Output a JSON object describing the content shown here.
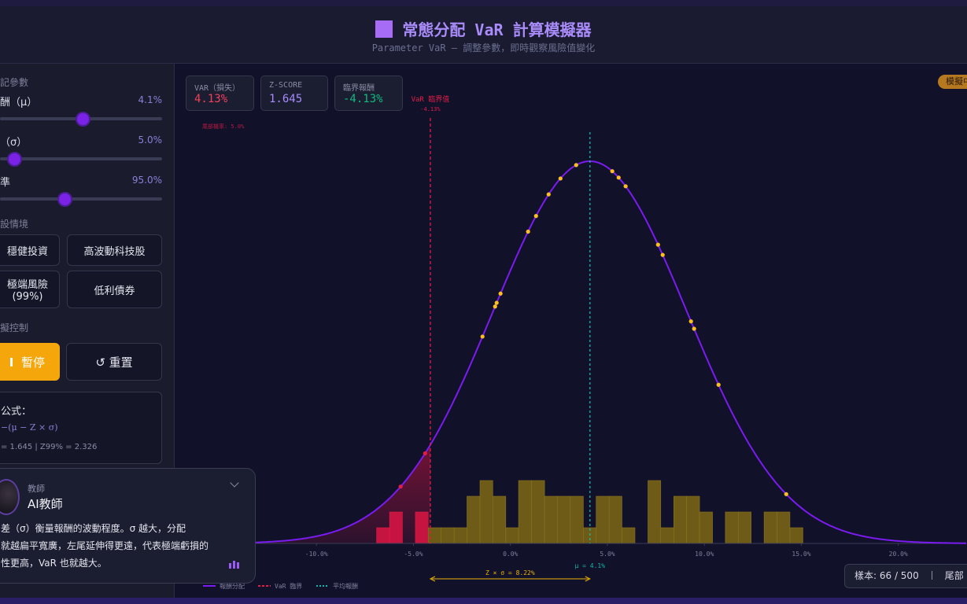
{
  "header": {
    "title": "常態分配 VaR 計算模擬器",
    "subtitle": "Parameter VaR — 調整參數，即時觀察風險值變化"
  },
  "sidebar": {
    "params_heading": "記參數",
    "sliders": [
      {
        "label": "酬（μ）",
        "value": "4.1%"
      },
      {
        "label": "（σ）",
        "value": "5.0%"
      },
      {
        "label": "準",
        "value": "95.0%"
      }
    ],
    "scenario_heading": "設情境",
    "scenarios": [
      "穩健投資",
      "高波動科技股",
      "極端風險 (99%)",
      "低利債券"
    ],
    "control_heading": "擬控制",
    "pause": "暫停",
    "reset": "↺ 重置",
    "formula_title": "公式：",
    "formula_lines": [
      "−(μ − Z × σ)",
      "= 1.645 | Z99% = 2.326"
    ]
  },
  "chat": {
    "role": "教師",
    "name": "AI教師",
    "lines": [
      "差（σ）衡量報酬的波動程度。σ 越大，分配",
      "就越扁平寬廣，左尾延伸得更遠，代表極端虧損的",
      "性更高，VaR 也就越大。"
    ]
  },
  "stats": [
    {
      "label": "VAR（損失）",
      "value": "4.13%"
    },
    {
      "label": "Z-SCORE",
      "value": "1.645"
    },
    {
      "label": "臨界報酬",
      "value": "-4.13%"
    }
  ],
  "status_badge": "模擬中",
  "footer_stats": {
    "samples": "樣本: 66 / 500",
    "tail": "尾部"
  },
  "chart_data": {
    "type": "histogram",
    "bins": [
      -6.9,
      -6.23,
      -5.57,
      -4.9,
      -4.24,
      -3.57,
      -2.9,
      -2.24,
      -1.57,
      -0.91,
      -0.24,
      0.42,
      1.09,
      1.76,
      2.42,
      3.09,
      3.76,
      4.42,
      5.09,
      5.75,
      6.42,
      7.09,
      7.75,
      8.42,
      9.08,
      9.75,
      10.42,
      11.08,
      11.75,
      12.41,
      13.08,
      13.75,
      14.41,
      15.08
    ],
    "values": [
      1,
      2,
      0,
      2,
      1,
      1,
      1,
      3,
      4,
      3,
      1,
      4,
      4,
      3,
      3,
      3,
      1,
      3,
      3,
      1,
      0,
      4,
      1,
      3,
      3,
      2,
      0,
      2,
      2,
      0,
      2,
      2,
      1
    ],
    "mean": 4.1,
    "sigma": 5.0,
    "var_threshold": -4.13,
    "sample_points": [
      -5.66,
      -4.4,
      -1.44,
      -0.79,
      -0.71,
      -0.51,
      0.91,
      1.32,
      1.97,
      2.58,
      3.39,
      5.25,
      5.58,
      5.94,
      7.61,
      7.85,
      9.31,
      9.47,
      10.73,
      14.22
    ],
    "xlim": [
      -16.5,
      23.5
    ],
    "ylim": [
      0,
      20
    ],
    "xticks": [
      {
        "value": -10,
        "label": "-10.0%"
      },
      {
        "value": -5,
        "label": "-5.0%"
      },
      {
        "value": 0,
        "label": "0.0%"
      },
      {
        "value": 5,
        "label": "5.0%"
      },
      {
        "value": 10,
        "label": "10.0%"
      },
      {
        "value": 15,
        "label": "15.0%"
      },
      {
        "value": 20,
        "label": "20.0%"
      }
    ],
    "var_label": "VaR 臨界值",
    "var_value_label": "-4.13%",
    "tail_label": "尾部機率: 5.0%",
    "mean_label": "μ = 4.1%",
    "span_label": "Z × σ = 8.22%",
    "legend": [
      "報酬分配",
      "VaR 臨界",
      "平均報酬"
    ],
    "colors": {
      "curve": "#7a1cf0",
      "bar": "#6e5b18",
      "bar_tail": "#c4143f",
      "var": "#e11d48",
      "mean": "#14b8a6",
      "point": "#fbbf24",
      "span": "#eab308"
    }
  }
}
